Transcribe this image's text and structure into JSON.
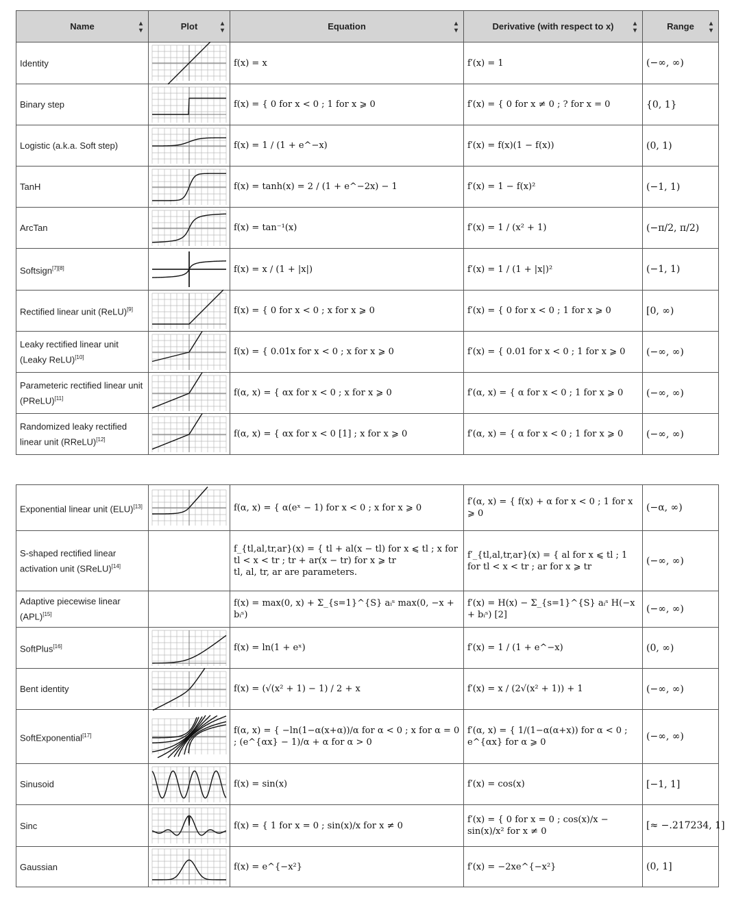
{
  "headers": {
    "name": "Name",
    "plot": "Plot",
    "equation": "Equation",
    "derivative": "Derivative (with respect to x)",
    "range": "Range",
    "sort_icon": "sort-arrows-icon"
  },
  "rows1": [
    {
      "name": "Identity",
      "sup": "",
      "eq": "f(x) = x",
      "deriv": "f′(x) = 1",
      "range": "(−∞, ∞)"
    },
    {
      "name": "Binary step",
      "sup": "",
      "eq": "f(x) = { 0 for x < 0 ; 1 for x ⩾ 0",
      "deriv": "f′(x) = { 0 for x ≠ 0 ; ? for x = 0",
      "range": "{0, 1}"
    },
    {
      "name": "Logistic (a.k.a. Soft step)",
      "sup": "",
      "eq": "f(x) = 1 / (1 + e^−x)",
      "deriv": "f′(x) = f(x)(1 − f(x))",
      "range": "(0, 1)"
    },
    {
      "name": "TanH",
      "sup": "",
      "eq": "f(x) = tanh(x) = 2 / (1 + e^−2x) − 1",
      "deriv": "f′(x) = 1 − f(x)²",
      "range": "(−1, 1)"
    },
    {
      "name": "ArcTan",
      "sup": "",
      "eq": "f(x) = tan⁻¹(x)",
      "deriv": "f′(x) = 1 / (x² + 1)",
      "range": "(−π/2, π/2)"
    },
    {
      "name": "Softsign",
      "sup": "[7][8]",
      "eq": "f(x) = x / (1 + |x|)",
      "deriv": "f′(x) = 1 / (1 + |x|)²",
      "range": "(−1, 1)"
    },
    {
      "name": "Rectified linear unit (ReLU)",
      "sup": "[9]",
      "eq": "f(x) = { 0 for x < 0 ; x for x ⩾ 0",
      "deriv": "f′(x) = { 0 for x < 0 ; 1 for x ⩾ 0",
      "range": "[0, ∞)"
    },
    {
      "name": "Leaky rectified linear unit (Leaky ReLU)",
      "sup": "[10]",
      "eq": "f(x) = { 0.01x for x < 0 ; x for x ⩾ 0",
      "deriv": "f′(x) = { 0.01 for x < 0 ; 1 for x ⩾ 0",
      "range": "(−∞, ∞)"
    },
    {
      "name": "Parameteric rectified linear unit (PReLU)",
      "sup": "[11]",
      "eq": "f(α, x) = { αx for x < 0 ; x for x ⩾ 0",
      "deriv": "f′(α, x) = { α for x < 0 ; 1 for x ⩾ 0",
      "range": "(−∞, ∞)"
    },
    {
      "name": "Randomized leaky rectified linear unit (RReLU)",
      "sup": "[12]",
      "eq": "f(α, x) = { αx for x < 0 [1] ; x for x ⩾ 0",
      "deriv": "f′(α, x) = { α for x < 0 ; 1 for x ⩾ 0",
      "range": "(−∞, ∞)"
    }
  ],
  "rows2": [
    {
      "name": "Exponential linear unit (ELU)",
      "sup": "[13]",
      "eq": "f(α, x) = { α(eˣ − 1) for x < 0 ; x for x ⩾ 0",
      "deriv": "f′(α, x) = { f(x) + α for x < 0 ; 1 for x ⩾ 0",
      "range": "(−α, ∞)"
    },
    {
      "name": "S-shaped rectified linear activation unit (SReLU)",
      "sup": "[14]",
      "eq": "f_{tl,al,tr,ar}(x) = { tl + al(x − tl) for x ⩽ tl ; x for tl < x < tr ; tr + ar(x − tr) for x ⩾ tr",
      "eq_note": "tl, al, tr, ar are parameters.",
      "deriv": "f′_{tl,al,tr,ar}(x) = { al for x ⩽ tl ; 1 for tl < x < tr ; ar for x ⩾ tr",
      "range": "(−∞, ∞)"
    },
    {
      "name": "Adaptive piecewise linear (APL)",
      "sup": "[15]",
      "eq": "f(x) = max(0, x) + Σ_{s=1}^{S} aᵢˢ max(0, −x + bᵢˢ)",
      "deriv": "f′(x) = H(x) − Σ_{s=1}^{S} aᵢˢ H(−x + bᵢˢ) [2]",
      "range": "(−∞, ∞)"
    },
    {
      "name": "SoftPlus",
      "sup": "[16]",
      "eq": "f(x) = ln(1 + eˣ)",
      "deriv": "f′(x) = 1 / (1 + e^−x)",
      "range": "(0, ∞)"
    },
    {
      "name": "Bent identity",
      "sup": "",
      "eq": "f(x) = (√(x² + 1) − 1) / 2 + x",
      "deriv": "f′(x) = x / (2√(x² + 1)) + 1",
      "range": "(−∞, ∞)"
    },
    {
      "name": "SoftExponential",
      "sup": "[17]",
      "eq": "f(α, x) = { −ln(1−α(x+α))/α for α < 0 ; x for α = 0 ; (e^{αx} − 1)/α + α for α > 0",
      "deriv": "f′(α, x) = { 1/(1−α(α+x)) for α < 0 ; e^{αx} for α ⩾ 0",
      "range": "(−∞, ∞)"
    },
    {
      "name": "Sinusoid",
      "sup": "",
      "eq": "f(x) = sin(x)",
      "deriv": "f′(x) = cos(x)",
      "range": "[−1, 1]"
    },
    {
      "name": "Sinc",
      "sup": "",
      "eq": "f(x) = { 1 for x = 0 ; sin(x)/x for x ≠ 0",
      "deriv": "f′(x) = { 0 for x = 0 ; cos(x)/x − sin(x)/x² for x ≠ 0",
      "range": "[≈ −.217234, 1]"
    },
    {
      "name": "Gaussian",
      "sup": "",
      "eq": "f(x) = e^{−x²}",
      "deriv": "f′(x) = −2xe^{−x²}",
      "range": "(0, 1]"
    }
  ]
}
